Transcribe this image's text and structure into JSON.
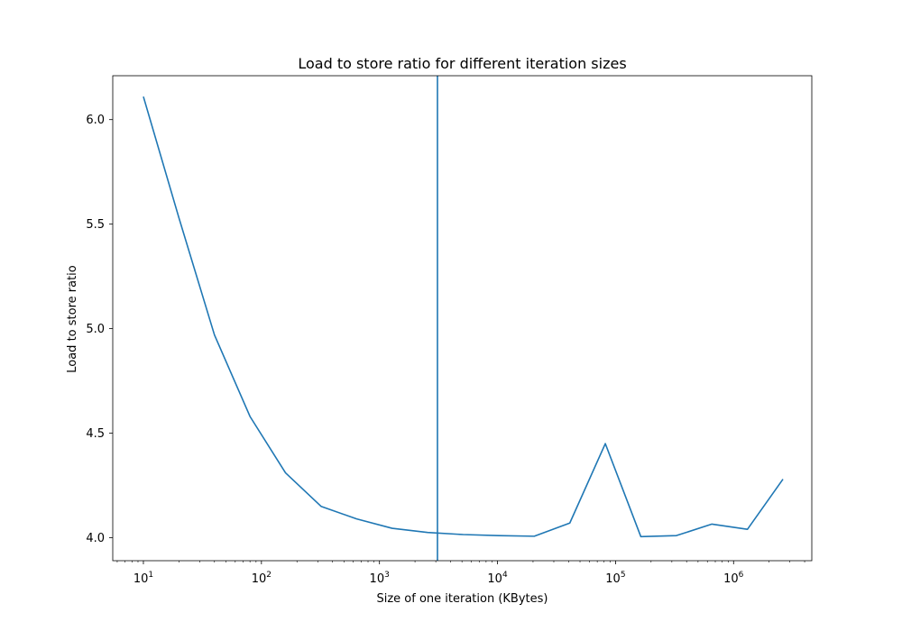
{
  "chart_data": {
    "type": "line",
    "title": "Load to store ratio for different iteration sizes",
    "xlabel": "Size of one iteration (KBytes)",
    "ylabel": "Load to store ratio",
    "xscale": "log",
    "xlim": [
      5.5,
      4600000
    ],
    "ylim": [
      3.89,
      6.21
    ],
    "grid": false,
    "series": [
      {
        "color": "#1f77b4",
        "x": [
          10,
          20,
          40,
          80,
          160,
          320,
          640,
          1280,
          2560,
          5120,
          10240,
          20480,
          40960,
          81920,
          163840,
          327680,
          655360,
          1310720,
          2621440
        ],
        "y": [
          6.11,
          5.53,
          4.97,
          4.58,
          4.31,
          4.15,
          4.09,
          4.045,
          4.025,
          4.015,
          4.01,
          4.007,
          4.07,
          4.45,
          4.005,
          4.01,
          4.065,
          4.04,
          4.28
        ]
      }
    ],
    "vline": {
      "x": 3100,
      "color": "#1f77b4"
    },
    "xticks": [
      {
        "value": 10,
        "base": "10",
        "exp": "1"
      },
      {
        "value": 100,
        "base": "10",
        "exp": "2"
      },
      {
        "value": 1000,
        "base": "10",
        "exp": "3"
      },
      {
        "value": 10000,
        "base": "10",
        "exp": "4"
      },
      {
        "value": 100000,
        "base": "10",
        "exp": "5"
      },
      {
        "value": 1000000,
        "base": "10",
        "exp": "6"
      }
    ],
    "yticks": [
      {
        "value": 4.0,
        "label": "4.0"
      },
      {
        "value": 4.5,
        "label": "4.5"
      },
      {
        "value": 5.0,
        "label": "5.0"
      },
      {
        "value": 5.5,
        "label": "5.5"
      },
      {
        "value": 6.0,
        "label": "6.0"
      }
    ]
  }
}
